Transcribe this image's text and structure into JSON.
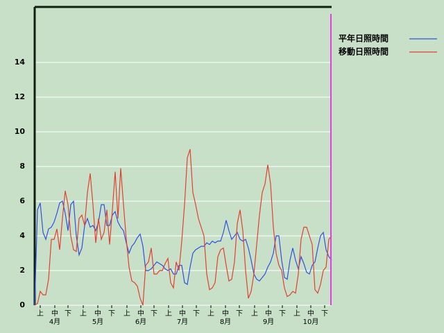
{
  "chart_data": {
    "type": "line",
    "x": [
      0,
      2,
      4,
      6,
      8,
      10,
      12,
      14,
      16,
      18,
      20,
      22,
      24,
      26,
      28,
      30,
      32,
      34,
      36,
      38,
      40,
      42,
      44,
      46,
      48,
      50,
      52,
      54,
      56,
      58,
      60,
      62,
      64,
      66,
      68,
      70,
      72,
      74,
      76,
      78,
      80,
      82,
      84,
      86,
      88,
      90,
      92,
      94,
      96,
      98,
      100,
      102,
      104,
      106,
      108,
      110,
      112,
      114,
      116,
      118,
      120,
      122,
      124,
      126,
      128,
      130,
      132,
      134,
      136,
      138,
      140,
      142,
      144,
      146,
      148,
      150,
      152,
      154,
      156,
      158,
      160,
      162,
      164,
      166,
      168,
      170,
      172,
      174,
      176,
      178,
      180,
      182,
      184,
      186,
      188,
      190,
      192,
      194,
      196,
      198,
      200,
      202,
      204,
      206,
      208,
      210,
      212,
      214
    ],
    "series": [
      {
        "name": "平年日照時間",
        "color": "#3050e0",
        "values": [
          0,
          5.5,
          5.9,
          4.2,
          3.8,
          4.4,
          4.5,
          4.8,
          5.3,
          5.9,
          6,
          5.3,
          4.3,
          5.8,
          6,
          4,
          2.9,
          3.3,
          4.6,
          5,
          4.5,
          4.6,
          4.3,
          4.8,
          5.8,
          5.8,
          4.6,
          4.6,
          5.2,
          5.4,
          4.8,
          4.5,
          4.3,
          3.6,
          3,
          3.4,
          3.6,
          3.9,
          4.1,
          3.4,
          2,
          2,
          2.1,
          2.3,
          2.5,
          2.4,
          2.3,
          2.1,
          2,
          2.1,
          1.8,
          1.8,
          2.3,
          2.3,
          1.3,
          1.2,
          2.2,
          3,
          3.2,
          3.3,
          3.4,
          3.4,
          3.6,
          3.5,
          3.7,
          3.6,
          3.7,
          3.7,
          4.2,
          4.9,
          4.3,
          3.8,
          4,
          4.2,
          3.8,
          3.7,
          3.8,
          3.3,
          2.6,
          1.8,
          1.5,
          1.4,
          1.6,
          1.8,
          2.2,
          2.5,
          3,
          4,
          4,
          2.6,
          1.6,
          1.5,
          2.6,
          3.3,
          2.6,
          2.1,
          2.8,
          2.4,
          1.9,
          1.8,
          2.3,
          2.5,
          3.3,
          4,
          4.2,
          3.2,
          2.8,
          2.6
        ]
      },
      {
        "name": "移動日照時間",
        "color": "#e04030",
        "values": [
          0,
          0.1,
          0.8,
          0.6,
          0.6,
          1.5,
          3.8,
          3.8,
          4.4,
          3.2,
          5,
          6.6,
          5.8,
          4,
          3.2,
          3.1,
          5,
          5.2,
          4.6,
          6.5,
          7.6,
          5.8,
          3.6,
          5,
          3.8,
          4.2,
          5.5,
          3.5,
          5.5,
          7.7,
          5,
          7.9,
          5.8,
          3.8,
          2.2,
          1.4,
          1.3,
          1.1,
          0.4,
          0,
          2.3,
          2.5,
          3.3,
          1.8,
          1.8,
          2,
          2,
          2.4,
          2.7,
          1.3,
          1,
          2.5,
          2,
          3.7,
          5.8,
          8.5,
          9,
          6.5,
          5.8,
          5,
          4.5,
          4,
          1.8,
          0.9,
          1,
          1.3,
          2.8,
          3.2,
          3.3,
          2.3,
          1.4,
          1.5,
          2.5,
          4.7,
          5.5,
          4.3,
          2,
          0.4,
          0.8,
          1.8,
          3.5,
          5.2,
          6.5,
          7,
          8.1,
          7,
          4.5,
          3,
          2.3,
          2,
          1,
          0.5,
          0.6,
          0.8,
          0.7,
          1.8,
          3.8,
          4.5,
          4.5,
          4,
          3.5,
          0.9,
          0.7,
          1.2,
          2,
          2.2,
          3.8,
          4
        ]
      }
    ],
    "xlim": [
      0,
      214
    ],
    "ylim": [
      0,
      17.2
    ],
    "yticks": [
      0,
      2,
      4,
      6,
      8,
      10,
      12,
      14
    ],
    "xticks": [
      {
        "value": 4,
        "label": "上"
      },
      {
        "value": 14.5,
        "label": "中"
      },
      {
        "value": 24,
        "label": "下"
      },
      {
        "value": 35,
        "label": "上"
      },
      {
        "value": 45.5,
        "label": "中"
      },
      {
        "value": 55.5,
        "label": "下"
      },
      {
        "value": 66.5,
        "label": "上"
      },
      {
        "value": 76.5,
        "label": "中"
      },
      {
        "value": 86,
        "label": "下"
      },
      {
        "value": 96.5,
        "label": "上"
      },
      {
        "value": 106.5,
        "label": "中"
      },
      {
        "value": 116.5,
        "label": "下"
      },
      {
        "value": 127,
        "label": "上"
      },
      {
        "value": 137.5,
        "label": "中"
      },
      {
        "value": 147.5,
        "label": "下"
      },
      {
        "value": 158.5,
        "label": "上"
      },
      {
        "value": 168.5,
        "label": "中"
      },
      {
        "value": 178.5,
        "label": "下"
      },
      {
        "value": 189,
        "label": "上"
      },
      {
        "value": 199,
        "label": "中"
      },
      {
        "value": 209,
        "label": "下"
      }
    ],
    "month_ticks": [
      {
        "value": 14.5,
        "label": "4月"
      },
      {
        "value": 45.5,
        "label": "5月"
      },
      {
        "value": 76.5,
        "label": "6月"
      },
      {
        "value": 106.5,
        "label": "7月"
      },
      {
        "value": 137.5,
        "label": "8月"
      },
      {
        "value": 168.5,
        "label": "9月"
      },
      {
        "value": 199,
        "label": "10月"
      }
    ],
    "marker_x": 213.5,
    "marker_color": "#e040e0",
    "grid": true
  }
}
